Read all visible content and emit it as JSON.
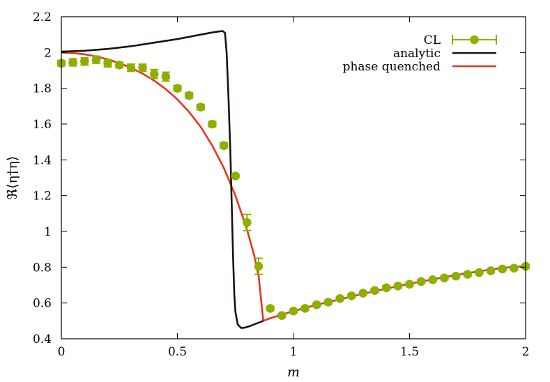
{
  "chart_data": {
    "type": "scatter",
    "xlabel": "m",
    "ylabel": "ℜ⟨η†η⟩",
    "xlim": [
      0,
      2
    ],
    "ylim": [
      0.4,
      2.2
    ],
    "xticks": [
      "0",
      "0.5",
      "1",
      "1.5",
      "2"
    ],
    "yticks": [
      "0.4",
      "0.6",
      "0.8",
      "1",
      "1.2",
      "1.4",
      "1.6",
      "1.8",
      "2",
      "2.2"
    ],
    "grid": false,
    "legend_position": "top-right",
    "series": [
      {
        "name": "CL",
        "kind": "points-with-errorbars",
        "color": "#8db000",
        "x": [
          0,
          0.05,
          0.1,
          0.15,
          0.2,
          0.25,
          0.3,
          0.35,
          0.4,
          0.45,
          0.5,
          0.55,
          0.6,
          0.65,
          0.7,
          0.75,
          0.8,
          0.85,
          0.9,
          0.95,
          1.0,
          1.05,
          1.1,
          1.15,
          1.2,
          1.25,
          1.3,
          1.35,
          1.4,
          1.45,
          1.5,
          1.55,
          1.6,
          1.65,
          1.7,
          1.75,
          1.8,
          1.85,
          1.9,
          1.95,
          2.0
        ],
        "y": [
          1.94,
          1.945,
          1.95,
          1.96,
          1.94,
          1.93,
          1.915,
          1.915,
          1.88,
          1.865,
          1.8,
          1.76,
          1.695,
          1.6,
          1.48,
          1.31,
          1.05,
          0.805,
          0.57,
          0.53,
          0.555,
          0.57,
          0.59,
          0.605,
          0.625,
          0.64,
          0.655,
          0.67,
          0.685,
          0.695,
          0.705,
          0.72,
          0.73,
          0.74,
          0.75,
          0.76,
          0.77,
          0.78,
          0.79,
          0.795,
          0.805
        ],
        "yerr": [
          0.015,
          0.02,
          0.02,
          0.02,
          0.02,
          0.015,
          0.02,
          0.02,
          0.025,
          0.025,
          0.015,
          0.015,
          0.015,
          0.015,
          0.015,
          0.01,
          0.045,
          0.045,
          0.01,
          0.01,
          0.01,
          0.01,
          0.01,
          0.01,
          0.01,
          0.01,
          0.01,
          0.01,
          0.01,
          0.01,
          0.01,
          0.01,
          0.01,
          0.01,
          0.01,
          0.01,
          0.01,
          0.01,
          0.01,
          0.01,
          0.01
        ]
      },
      {
        "name": "analytic",
        "kind": "line",
        "color": "#1a1110",
        "x": [
          0,
          0.1,
          0.2,
          0.3,
          0.4,
          0.5,
          0.6,
          0.65,
          0.68,
          0.695,
          0.705,
          0.712,
          0.72,
          0.728,
          0.734,
          0.74,
          0.745,
          0.75,
          0.76,
          0.775,
          0.79,
          0.81,
          0.84,
          0.87
        ],
        "y": [
          2.005,
          2.01,
          2.02,
          2.035,
          2.055,
          2.075,
          2.1,
          2.112,
          2.118,
          2.12,
          2.11,
          2.0,
          1.75,
          1.45,
          1.15,
          0.85,
          0.65,
          0.55,
          0.48,
          0.46,
          0.462,
          0.47,
          0.485,
          0.5
        ]
      },
      {
        "name": "phase quenched",
        "kind": "line",
        "color": "#e8341c",
        "x": [
          0,
          0.05,
          0.1,
          0.15,
          0.2,
          0.25,
          0.3,
          0.35,
          0.4,
          0.45,
          0.5,
          0.55,
          0.6,
          0.65,
          0.7,
          0.75,
          0.8,
          0.83,
          0.85,
          0.87,
          0.9,
          0.95,
          1.0,
          1.05,
          1.1,
          1.15,
          1.2,
          1.25,
          1.3,
          1.35,
          1.4,
          1.45,
          1.5,
          1.55,
          1.6,
          1.65,
          1.7,
          1.75,
          1.8,
          1.85,
          1.9,
          1.95,
          2.0
        ],
        "y": [
          2.0,
          1.997,
          1.99,
          1.978,
          1.962,
          1.94,
          1.915,
          1.882,
          1.843,
          1.795,
          1.738,
          1.668,
          1.585,
          1.48,
          1.355,
          1.2,
          1.01,
          0.87,
          0.75,
          0.5,
          0.515,
          0.535,
          0.555,
          0.572,
          0.59,
          0.605,
          0.62,
          0.636,
          0.651,
          0.666,
          0.68,
          0.694,
          0.708,
          0.72,
          0.732,
          0.744,
          0.756,
          0.767,
          0.777,
          0.787,
          0.796,
          0.802,
          0.805
        ]
      }
    ]
  }
}
